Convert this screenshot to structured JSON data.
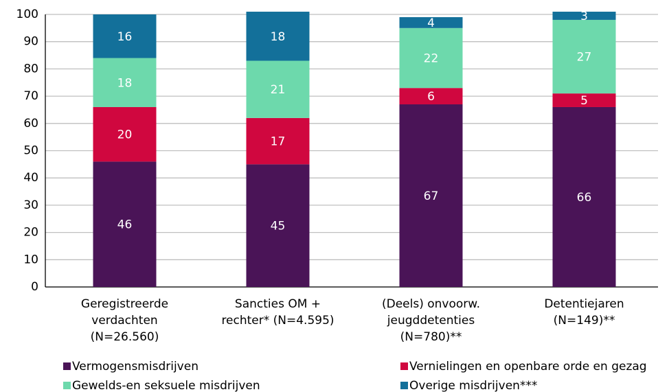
{
  "chart_data": {
    "type": "stacked_bar",
    "categories": [
      [
        "Geregistreerde",
        "verdachten",
        "(N=26.560)"
      ],
      [
        "Sancties OM +",
        "rechter* (N=4.595)"
      ],
      [
        "(Deels) onvoorw.",
        "jeugddetenties",
        "(N=780)**"
      ],
      [
        "Detentiejaren",
        "(N=149)**"
      ]
    ],
    "series": [
      {
        "name": "Vermogensmisdrijven",
        "color": "#4a1457",
        "values": [
          46,
          45,
          67,
          66
        ]
      },
      {
        "name": "Vernielingen en openbare orde en gezag",
        "color": "#d0073f",
        "values": [
          20,
          17,
          6,
          5
        ]
      },
      {
        "name": "Gewelds-en seksuele misdrijven",
        "color": "#6dd9ac",
        "values": [
          18,
          21,
          22,
          27
        ]
      },
      {
        "name": "Overige misdrijven***",
        "color": "#13709a",
        "values": [
          16,
          18,
          4,
          3
        ]
      }
    ],
    "ylim": [
      0,
      100
    ],
    "yticks": [
      0,
      10,
      20,
      30,
      40,
      50,
      60,
      70,
      80,
      90,
      100
    ],
    "grid": true,
    "legend": "bottom"
  }
}
